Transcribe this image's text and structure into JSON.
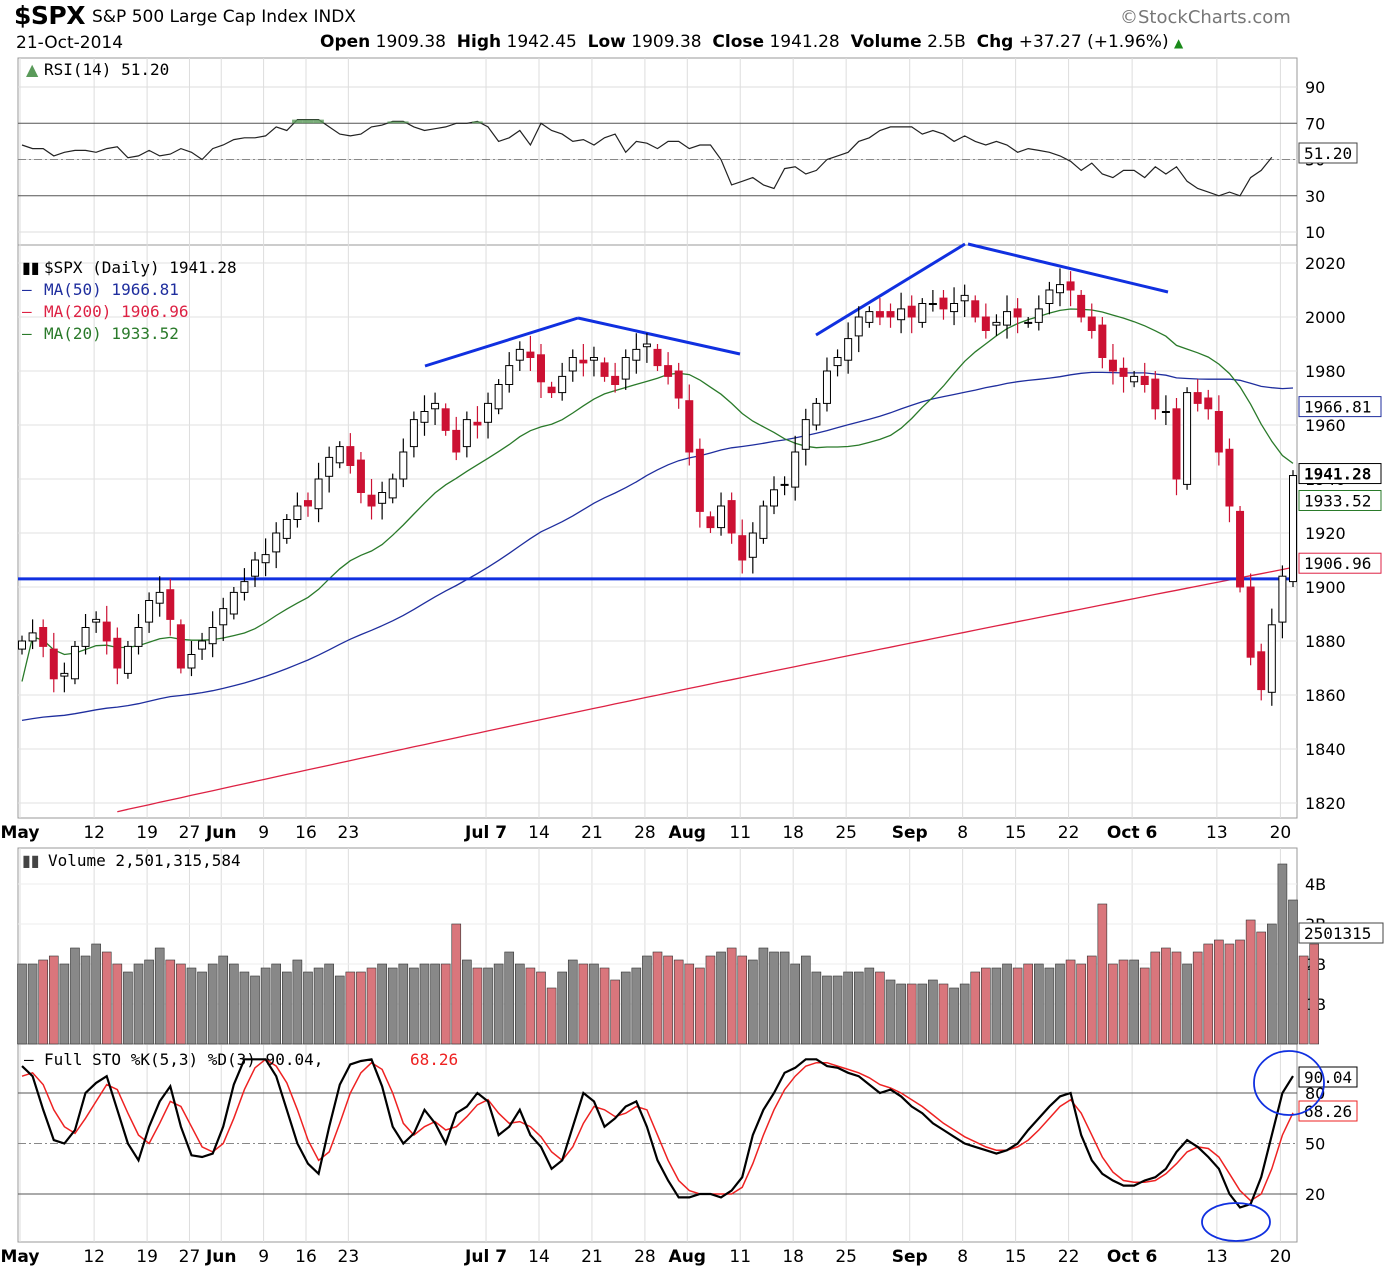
{
  "header": {
    "symbol": "$SPX",
    "name": "S&P 500 Large Cap Index INDX",
    "copyright": "©StockCharts.com",
    "date": "21-Oct-2014",
    "open_label": "Open",
    "open": "1909.38",
    "high_label": "High",
    "high": "1942.45",
    "low_label": "Low",
    "low": "1909.38",
    "close_label": "Close",
    "close": "1941.28",
    "volume_label": "Volume",
    "volume": "2.5B",
    "chg_label": "Chg",
    "chg": "+37.27 (+1.96%)"
  },
  "colors": {
    "up": "#ffffff",
    "down": "#cc1133",
    "ma50": "#1f2e9e",
    "ma200": "#dd2244",
    "ma20": "#2a7a2a",
    "trend": "#1030e0",
    "vol_up": "#888888",
    "vol_down": "#d9767c",
    "sto_k": "#000000",
    "sto_d": "#ee2222"
  },
  "chart_data": [
    {
      "type": "line",
      "panel": "rsi",
      "title": "RSI(14) 51.20",
      "y_ticks": [
        90,
        70,
        50,
        30,
        10
      ],
      "ylim": [
        0,
        100
      ],
      "last_label": "51.20",
      "series": [
        {
          "name": "RSI(14)",
          "values": [
            58,
            56,
            56,
            52,
            54,
            55,
            55,
            54,
            56,
            57,
            51,
            52,
            55,
            52,
            53,
            56,
            54,
            50,
            56,
            58,
            61,
            62,
            62,
            63,
            68,
            66,
            72,
            72,
            72,
            68,
            64,
            63,
            64,
            68,
            69,
            71,
            71,
            68,
            66,
            67,
            68,
            70,
            70,
            71,
            68,
            60,
            62,
            66,
            58,
            70,
            66,
            64,
            60,
            61,
            58,
            62,
            64,
            54,
            60,
            59,
            56,
            60,
            60,
            56,
            58,
            58,
            50,
            36,
            38,
            40,
            36,
            34,
            45,
            46,
            42,
            44,
            50,
            52,
            54,
            60,
            62,
            66,
            68,
            68,
            68,
            64,
            66,
            64,
            60,
            63,
            60,
            58,
            60,
            58,
            54,
            56,
            55,
            54,
            52,
            49,
            44,
            48,
            42,
            40,
            44,
            44,
            40,
            46,
            42,
            46,
            38,
            34,
            32,
            30,
            32,
            30,
            40,
            44,
            51.2
          ]
        }
      ]
    },
    {
      "type": "candlestick",
      "panel": "price",
      "title": "$SPX (Daily) 1941.28",
      "legend": [
        "MA(50) 1966.81",
        "MA(200) 1906.96",
        "MA(20) 1933.52"
      ],
      "x_labels": [
        "May",
        "12",
        "19",
        "27",
        "Jun",
        "9",
        "16",
        "23",
        "Jul 7",
        "14",
        "21",
        "28",
        "Aug",
        "11",
        "18",
        "25",
        "Sep",
        "8",
        "15",
        "22",
        "Oct 6",
        "13",
        "20"
      ],
      "y_ticks": [
        2020,
        2000,
        1980,
        1960,
        1940,
        1920,
        1900,
        1880,
        1860,
        1840,
        1820
      ],
      "ylim": [
        1816,
        2032
      ],
      "right_labels": {
        "ma50": "1966.81",
        "last": "1941.28",
        "ma20": "1933.52",
        "ma200": "1906.96"
      },
      "support_level": 1903,
      "closes": [
        1880,
        1883,
        1878,
        1866,
        1868,
        1878,
        1885,
        1888,
        1880,
        1870,
        1878,
        1885,
        1895,
        1898,
        1888,
        1870,
        1875,
        1880,
        1885,
        1892,
        1898,
        1902,
        1910,
        1912,
        1920,
        1925,
        1930,
        1930,
        1940,
        1948,
        1952,
        1945,
        1935,
        1930,
        1935,
        1940,
        1950,
        1962,
        1965,
        1968,
        1958,
        1950,
        1962,
        1960,
        1968,
        1975,
        1982,
        1988,
        1985,
        1976,
        1972,
        1978,
        1985,
        1983,
        1985,
        1978,
        1975,
        1985,
        1988,
        1990,
        1982,
        1978,
        1970,
        1950,
        1928,
        1922,
        1930,
        1920,
        1910,
        1920,
        1930,
        1936,
        1938,
        1950,
        1962,
        1968,
        1980,
        1985,
        1992,
        2000,
        2002,
        2000,
        2000,
        2003,
        2000,
        2005,
        2005,
        2003,
        2005,
        2008,
        2000,
        1995,
        1998,
        2002,
        2000,
        1998,
        2003,
        2010,
        2012,
        2010,
        2000,
        1995,
        1985,
        1980,
        1978,
        1978,
        1975,
        1966,
        1965,
        1940,
        1972,
        1968,
        1966,
        1950,
        1930,
        1900,
        1874,
        1862,
        1886,
        1904,
        1941.28
      ],
      "series": [
        {
          "name": "MA(50)",
          "last": 1966.81
        },
        {
          "name": "MA(200)",
          "last": 1906.96
        },
        {
          "name": "MA(20)",
          "last": 1933.52
        }
      ]
    },
    {
      "type": "bar",
      "panel": "volume",
      "title": "Volume 2,501,315,584",
      "y_ticks": [
        "4B",
        "3B",
        "2B",
        "1B"
      ],
      "last_label": "2501315",
      "values_billions": [
        2.0,
        2.0,
        2.1,
        2.2,
        2.0,
        2.4,
        2.2,
        2.5,
        2.3,
        2.0,
        1.8,
        2.0,
        2.1,
        2.4,
        2.1,
        2.0,
        1.9,
        1.8,
        2.0,
        2.2,
        2.0,
        1.8,
        1.7,
        1.9,
        2.0,
        1.8,
        2.1,
        1.8,
        1.9,
        2.0,
        1.7,
        1.8,
        1.8,
        1.9,
        2.0,
        1.9,
        2.0,
        1.9,
        2.0,
        2.0,
        2.0,
        3.0,
        2.1,
        1.9,
        1.9,
        2.0,
        2.3,
        2.0,
        1.9,
        1.8,
        1.4,
        1.8,
        2.1,
        2.0,
        2.0,
        1.9,
        1.6,
        1.8,
        1.9,
        2.2,
        2.3,
        2.2,
        2.1,
        2.0,
        1.9,
        2.2,
        2.3,
        2.4,
        2.2,
        2.1,
        2.4,
        2.3,
        2.3,
        2.0,
        2.2,
        1.8,
        1.7,
        1.7,
        1.8,
        1.8,
        1.9,
        1.8,
        1.6,
        1.5,
        1.5,
        1.5,
        1.6,
        1.5,
        1.4,
        1.5,
        1.8,
        1.9,
        1.9,
        2.0,
        1.9,
        2.0,
        2.0,
        1.9,
        2.0,
        2.1,
        2.0,
        2.2,
        3.5,
        2.0,
        2.1,
        2.1,
        1.9,
        2.3,
        2.4,
        2.3,
        2.0,
        2.3,
        2.5,
        2.6,
        2.5,
        2.6,
        3.1,
        2.8,
        3.0,
        4.5,
        3.6,
        2.2,
        2.5
      ]
    },
    {
      "type": "line",
      "panel": "stochastic",
      "title": "Full STO %K(5,3) %D(3) 90.04, 68.26",
      "title_k": "Full STO %K(5,3) %D(3) 90.04,",
      "title_d": "68.26",
      "y_ticks": [
        80,
        50,
        20
      ],
      "ylim": [
        0,
        100
      ],
      "last_labels": {
        "k": "90.04",
        "d": "68.26"
      },
      "series": [
        {
          "name": "%K",
          "values": [
            96,
            90,
            70,
            52,
            50,
            58,
            80,
            86,
            90,
            70,
            50,
            40,
            60,
            75,
            84,
            60,
            43,
            42,
            44,
            60,
            85,
            100,
            100,
            100,
            90,
            70,
            50,
            38,
            32,
            60,
            85,
            97,
            99,
            100,
            84,
            60,
            50,
            56,
            70,
            62,
            50,
            68,
            72,
            80,
            75,
            55,
            60,
            70,
            55,
            48,
            35,
            40,
            60,
            80,
            75,
            60,
            65,
            72,
            75,
            60,
            40,
            28,
            18,
            18,
            20,
            20,
            18,
            22,
            30,
            55,
            70,
            80,
            92,
            95,
            100,
            100,
            96,
            95,
            92,
            90,
            85,
            80,
            82,
            78,
            72,
            68,
            62,
            58,
            54,
            50,
            48,
            46,
            44,
            46,
            50,
            58,
            65,
            72,
            78,
            80,
            55,
            40,
            32,
            28,
            25,
            25,
            28,
            30,
            35,
            45,
            52,
            48,
            42,
            35,
            20,
            12,
            14,
            30,
            55,
            80,
            90.04
          ]
        },
        {
          "name": "%D",
          "values": [
            90,
            92,
            85,
            70,
            60,
            56,
            65,
            75,
            85,
            82,
            68,
            55,
            50,
            62,
            75,
            72,
            60,
            48,
            45,
            50,
            65,
            82,
            95,
            100,
            96,
            86,
            70,
            52,
            40,
            45,
            62,
            80,
            92,
            98,
            94,
            80,
            62,
            55,
            60,
            63,
            58,
            60,
            66,
            73,
            76,
            68,
            62,
            63,
            60,
            54,
            45,
            40,
            48,
            62,
            72,
            70,
            66,
            68,
            72,
            70,
            55,
            40,
            28,
            22,
            20,
            20,
            20,
            20,
            24,
            38,
            55,
            70,
            82,
            90,
            96,
            98,
            98,
            96,
            94,
            92,
            89,
            85,
            83,
            80,
            76,
            72,
            67,
            62,
            58,
            54,
            51,
            48,
            46,
            46,
            48,
            52,
            58,
            65,
            72,
            76,
            68,
            55,
            42,
            33,
            28,
            27,
            27,
            28,
            32,
            38,
            45,
            48,
            47,
            42,
            32,
            22,
            16,
            20,
            35,
            55,
            68.26
          ]
        }
      ]
    }
  ]
}
